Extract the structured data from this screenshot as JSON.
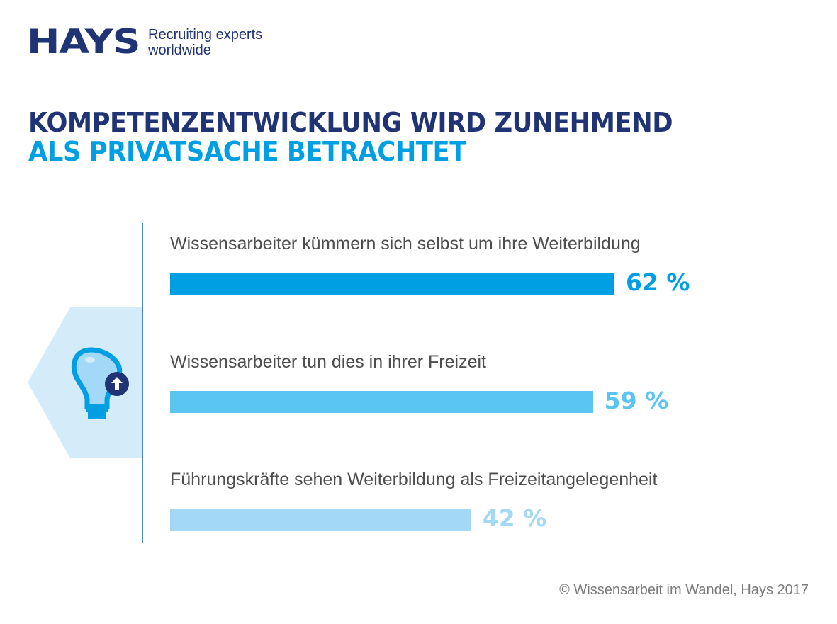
{
  "logo": {
    "brand": "HAYS",
    "tagline_1": "Recruiting experts",
    "tagline_2": "worldwide"
  },
  "title": {
    "line1": "KOMPETENZENTWICKLUNG WIRD ZUNEHMEND",
    "line2": "ALS PRIVATSACHE BETRACHTET"
  },
  "icon": "lightbulb-up-arrow-icon",
  "chart_data": {
    "type": "bar",
    "orientation": "horizontal",
    "categories": [
      "Wissensarbeiter kümmern sich selbst um ihre Weiterbildung",
      "Wissensarbeiter tun dies in ihrer Freizeit",
      "Führungskräfte sehen Weiterbildung als Freizeitangelegenheit"
    ],
    "values": [
      62,
      59,
      42
    ],
    "value_labels": [
      "62 %",
      "59 %",
      "42 %"
    ],
    "colors": [
      "#009fe3",
      "#5bc5f2",
      "#a3d9f7"
    ],
    "xlim": [
      0,
      100
    ],
    "unit": "%"
  },
  "source": "© Wissensarbeit im Wandel, Hays 2017"
}
